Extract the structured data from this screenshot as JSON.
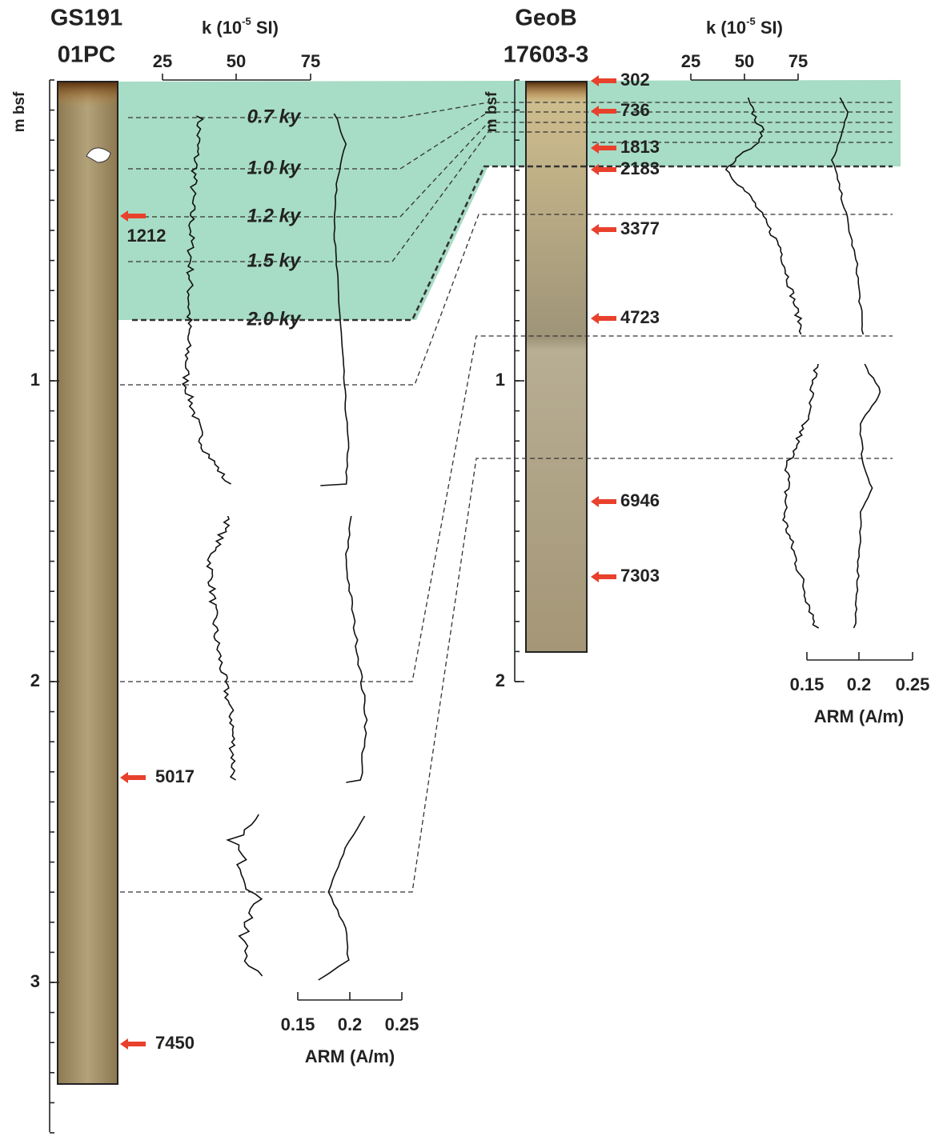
{
  "cores": [
    {
      "name_lines": [
        "GS191",
        "01PC"
      ],
      "dates": [
        "1212",
        "5017",
        "7450"
      ],
      "depth_axis": {
        "label": "m bsf",
        "ticks": [
          "1",
          "2",
          "3"
        ]
      },
      "k_axis": {
        "prefix": "k (10",
        "exponent": "-5",
        "suffix": " SI)",
        "ticks": [
          "25",
          "50",
          "75"
        ]
      },
      "arm_axis": {
        "label": "ARM (A/m)",
        "ticks": [
          "0.15",
          "0.2",
          "0.25"
        ]
      },
      "ages": [
        "0.7 ky",
        "1.0 ky",
        "1.2 ky",
        "1.5 ky",
        "2.0 ky"
      ]
    },
    {
      "name_lines": [
        "GeoB",
        "17603-3"
      ],
      "dates": [
        "302",
        "736",
        "1813",
        "2183",
        "3377",
        "4723",
        "6946",
        "7303"
      ],
      "depth_axis": {
        "label": "m bsf",
        "ticks": [
          "1",
          "2"
        ]
      },
      "k_axis": {
        "prefix": "k (10",
        "exponent": "-5",
        "suffix": " SI)",
        "ticks": [
          "25",
          "50",
          "75"
        ]
      },
      "arm_axis": {
        "label": "ARM (A/m)",
        "ticks": [
          "0.15",
          "0.2",
          "0.25"
        ]
      }
    }
  ]
}
